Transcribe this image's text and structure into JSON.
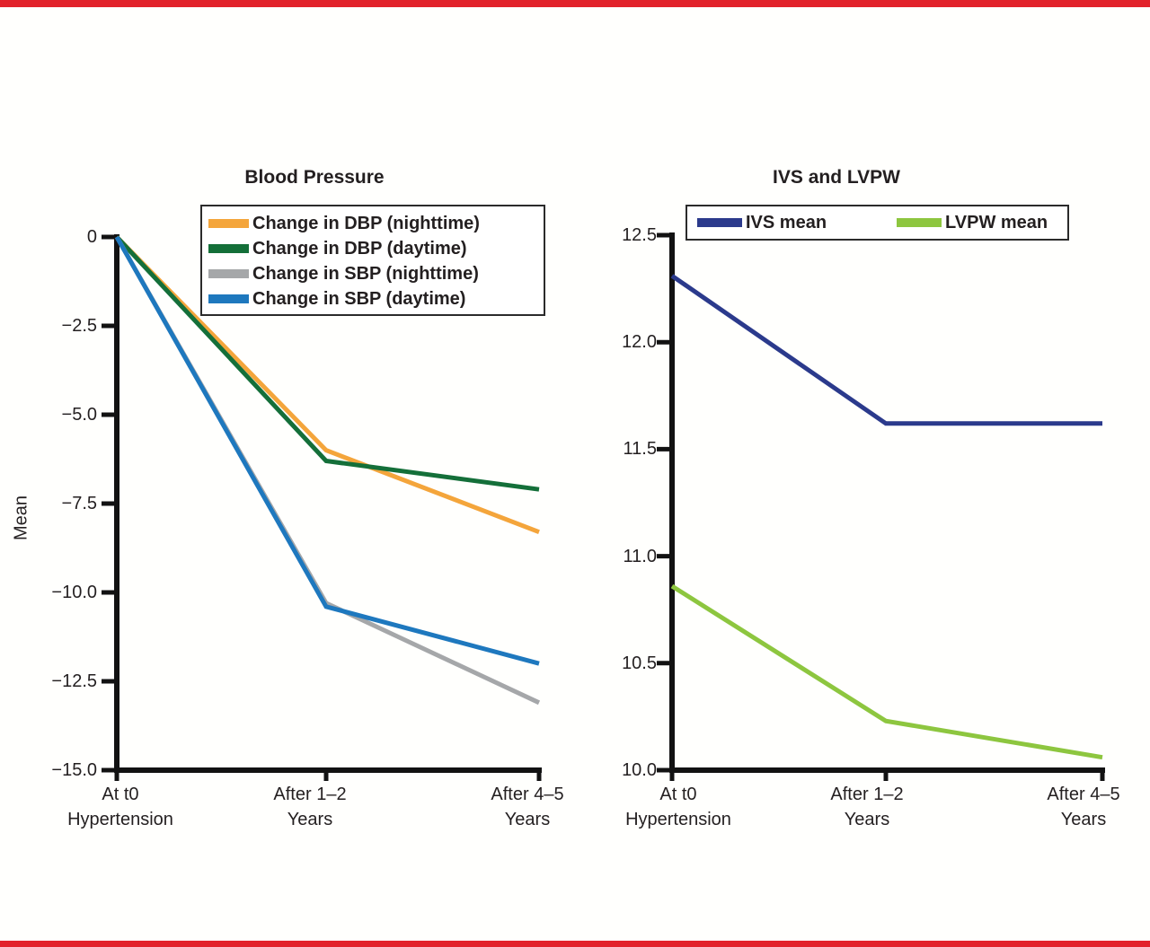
{
  "page": {
    "background": "#fffffd",
    "top_bar_color": "#e2222b",
    "bottom_bar_color": "#e2222b"
  },
  "chart_data": [
    {
      "type": "line",
      "title": "Blood Pressure",
      "ylabel": "Mean",
      "xlabel": "",
      "ylim": [
        -15.0,
        0
      ],
      "grid": false,
      "legend_position": "top-inside",
      "yticks": [
        {
          "value": 0,
          "label": "0"
        },
        {
          "value": -2.5,
          "label": "−2.5"
        },
        {
          "value": -5.0,
          "label": "−5.0"
        },
        {
          "value": -7.5,
          "label": "−7.5"
        },
        {
          "value": -10.0,
          "label": "−10.0"
        },
        {
          "value": -12.5,
          "label": "−12.5"
        },
        {
          "value": -15.0,
          "label": "−15.0"
        }
      ],
      "categories": [
        [
          "At t0",
          "Hypertension"
        ],
        [
          "After 1–2",
          "Years"
        ],
        [
          "After 4–5",
          "Years"
        ]
      ],
      "series": [
        {
          "name": "Change in DBP (nighttime)",
          "color": "#F4A53B",
          "values": [
            0,
            -6.0,
            -8.3
          ]
        },
        {
          "name": "Change in DBP (daytime)",
          "color": "#146F39",
          "values": [
            0,
            -6.3,
            -7.1
          ]
        },
        {
          "name": "Change in SBP (nighttime)",
          "color": "#A5A7A9",
          "values": [
            0,
            -10.3,
            -13.1
          ]
        },
        {
          "name": "Change in SBP (daytime)",
          "color": "#1E78BE",
          "values": [
            0,
            -10.4,
            -12.0
          ]
        }
      ]
    },
    {
      "type": "line",
      "title": "IVS and LVPW",
      "ylabel": "",
      "xlabel": "",
      "ylim": [
        10.0,
        12.5
      ],
      "grid": false,
      "legend_position": "top-inside",
      "yticks": [
        {
          "value": 12.5,
          "label": "12.5"
        },
        {
          "value": 12.0,
          "label": "12.0"
        },
        {
          "value": 11.5,
          "label": "11.5"
        },
        {
          "value": 11.0,
          "label": "11.0"
        },
        {
          "value": 10.5,
          "label": "10.5"
        },
        {
          "value": 10.0,
          "label": "10.0"
        }
      ],
      "categories": [
        [
          "At t0",
          "Hypertension"
        ],
        [
          "After 1–2",
          "Years"
        ],
        [
          "After 4–5",
          "Years"
        ]
      ],
      "series": [
        {
          "name": "IVS mean",
          "color": "#2B3A8C",
          "values": [
            12.31,
            11.62,
            11.62
          ]
        },
        {
          "name": "LVPW mean",
          "color": "#8DC63F",
          "values": [
            10.86,
            10.23,
            10.06
          ]
        }
      ]
    }
  ]
}
